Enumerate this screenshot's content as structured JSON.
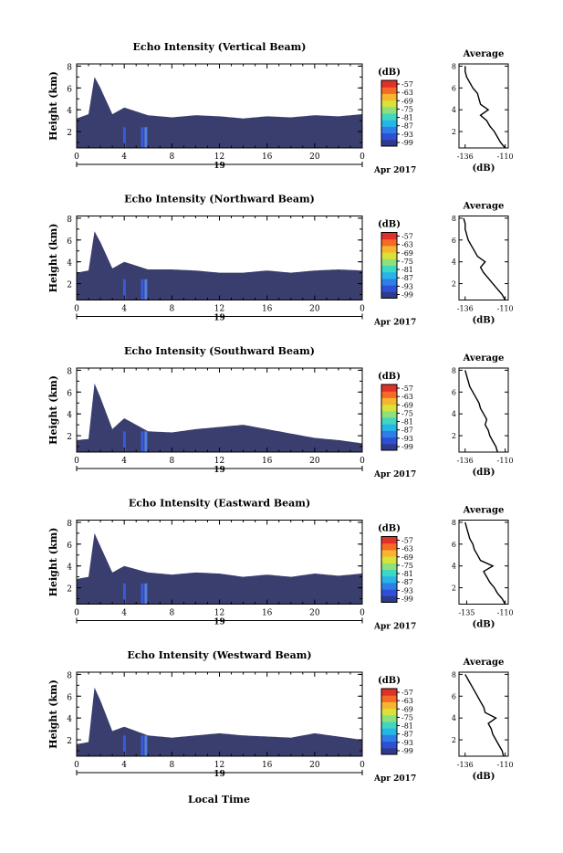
{
  "footer": {
    "xlabel": "Local Time"
  },
  "date_label": {
    "day": "19",
    "monthyear": "Apr 2017"
  },
  "colorbar": {
    "unit": "(dB)",
    "ticks": [
      "-57",
      "-63",
      "-69",
      "-75",
      "-81",
      "-87",
      "-93",
      "-99"
    ],
    "colors": [
      "#2e3a8c",
      "#2f4fd6",
      "#2d7fe8",
      "#27b4e8",
      "#3fd6c4",
      "#8ee07a",
      "#d8e23a",
      "#f7b52c",
      "#f46a26",
      "#e0302a"
    ]
  },
  "theme": {
    "fill": "#3a3e6e",
    "line": "#000000"
  },
  "chart_data": [
    {
      "type": "heatmap",
      "title": "Echo Intensity (Vertical Beam)",
      "ylabel": "Height (km)",
      "x_ticks": [
        "0",
        "4",
        "8",
        "12",
        "16",
        "20",
        "0"
      ],
      "y_ticks": [
        "2",
        "4",
        "6",
        "8"
      ],
      "xlim": [
        0,
        24
      ],
      "ylim": [
        0.5,
        8.2
      ],
      "echo_top_km": [
        [
          0,
          3.2
        ],
        [
          1,
          3.6
        ],
        [
          1.5,
          7.0
        ],
        [
          2,
          6.0
        ],
        [
          3,
          3.6
        ],
        [
          4,
          4.2
        ],
        [
          6,
          3.5
        ],
        [
          8,
          3.3
        ],
        [
          10,
          3.5
        ],
        [
          12,
          3.4
        ],
        [
          14,
          3.2
        ],
        [
          16,
          3.4
        ],
        [
          18,
          3.3
        ],
        [
          20,
          3.5
        ],
        [
          22,
          3.4
        ],
        [
          24,
          3.6
        ]
      ],
      "average": {
        "title": "Average",
        "xlabel": "(dB)",
        "x_ticks": [
          "-136",
          "-110"
        ],
        "xlim": [
          -140,
          -108
        ],
        "y_ticks": [
          "2",
          "4",
          "6",
          "8"
        ],
        "height_km": [
          0.5,
          1,
          1.5,
          2,
          2.5,
          3,
          3.5,
          4,
          4.5,
          5,
          5.5,
          6,
          6.5,
          7,
          7.5,
          8
        ],
        "db": [
          -110,
          -113,
          -115,
          -117,
          -120,
          -122,
          -126,
          -121,
          -126,
          -127,
          -128,
          -131,
          -133,
          -135,
          -136,
          -136
        ]
      }
    },
    {
      "type": "heatmap",
      "title": "Echo Intensity (Northward Beam)",
      "ylabel": "Height (km)",
      "x_ticks": [
        "0",
        "4",
        "8",
        "12",
        "16",
        "20",
        "0"
      ],
      "y_ticks": [
        "2",
        "4",
        "6",
        "8"
      ],
      "xlim": [
        0,
        24
      ],
      "ylim": [
        0.5,
        8.2
      ],
      "echo_top_km": [
        [
          0,
          3.0
        ],
        [
          1,
          3.2
        ],
        [
          1.5,
          6.8
        ],
        [
          2,
          5.8
        ],
        [
          3,
          3.4
        ],
        [
          4,
          4.0
        ],
        [
          6,
          3.3
        ],
        [
          8,
          3.3
        ],
        [
          10,
          3.2
        ],
        [
          12,
          3.0
        ],
        [
          14,
          3.0
        ],
        [
          16,
          3.2
        ],
        [
          18,
          3.0
        ],
        [
          20,
          3.2
        ],
        [
          22,
          3.3
        ],
        [
          24,
          3.2
        ]
      ],
      "average": {
        "title": "Average",
        "xlabel": "(dB)",
        "x_ticks": [
          "-136",
          "-110"
        ],
        "xlim": [
          -140,
          -108
        ],
        "y_ticks": [
          "2",
          "4",
          "6",
          "8"
        ],
        "height_km": [
          0.5,
          1,
          1.5,
          2,
          2.5,
          3,
          3.5,
          4,
          4.5,
          5,
          5.5,
          6,
          6.5,
          7,
          7.5,
          8
        ],
        "db": [
          -110,
          -112,
          -115,
          -118,
          -121,
          -124,
          -126,
          -123,
          -128,
          -130,
          -132,
          -134,
          -135,
          -136,
          -136,
          -137
        ]
      }
    },
    {
      "type": "heatmap",
      "title": "Echo Intensity (Southward Beam)",
      "ylabel": "Height (km)",
      "x_ticks": [
        "0",
        "4",
        "8",
        "12",
        "16",
        "20",
        "0"
      ],
      "y_ticks": [
        "2",
        "4",
        "6",
        "8"
      ],
      "xlim": [
        0,
        24
      ],
      "ylim": [
        0.5,
        8.2
      ],
      "echo_top_km": [
        [
          0,
          1.6
        ],
        [
          1,
          1.7
        ],
        [
          1.5,
          6.8
        ],
        [
          2,
          5.5
        ],
        [
          3,
          2.6
        ],
        [
          4,
          3.6
        ],
        [
          6,
          2.4
        ],
        [
          8,
          2.3
        ],
        [
          10,
          2.6
        ],
        [
          12,
          2.8
        ],
        [
          14,
          3.0
        ],
        [
          16,
          2.6
        ],
        [
          18,
          2.2
        ],
        [
          20,
          1.8
        ],
        [
          22,
          1.6
        ],
        [
          24,
          1.3
        ]
      ],
      "average": {
        "title": "Average",
        "xlabel": "(dB)",
        "x_ticks": [
          "-136",
          "-110"
        ],
        "xlim": [
          -140,
          -108
        ],
        "y_ticks": [
          "2",
          "4",
          "6",
          "8"
        ],
        "height_km": [
          0.5,
          1,
          1.5,
          2,
          2.5,
          3,
          3.5,
          4,
          4.5,
          5,
          5.5,
          6,
          6.5,
          7,
          7.5,
          8
        ],
        "db": [
          -115,
          -116,
          -118,
          -120,
          -121,
          -123,
          -122,
          -124,
          -126,
          -127,
          -129,
          -131,
          -133,
          -134,
          -135,
          -136
        ]
      }
    },
    {
      "type": "heatmap",
      "title": "Echo Intensity (Eastward Beam)",
      "ylabel": "Height (km)",
      "x_ticks": [
        "0",
        "4",
        "8",
        "12",
        "16",
        "20",
        "0"
      ],
      "y_ticks": [
        "2",
        "4",
        "6",
        "8"
      ],
      "xlim": [
        0,
        24
      ],
      "ylim": [
        0.5,
        8.2
      ],
      "echo_top_km": [
        [
          0,
          2.8
        ],
        [
          1,
          3.0
        ],
        [
          1.5,
          7.0
        ],
        [
          2,
          5.8
        ],
        [
          3,
          3.4
        ],
        [
          4,
          4.0
        ],
        [
          6,
          3.4
        ],
        [
          8,
          3.2
        ],
        [
          10,
          3.4
        ],
        [
          12,
          3.3
        ],
        [
          14,
          3.0
        ],
        [
          16,
          3.2
        ],
        [
          18,
          3.0
        ],
        [
          20,
          3.3
        ],
        [
          22,
          3.1
        ],
        [
          24,
          3.3
        ]
      ],
      "average": {
        "title": "Average",
        "xlabel": "(dB)",
        "x_ticks": [
          "-135",
          "-110"
        ],
        "xlim": [
          -140,
          -108
        ],
        "y_ticks": [
          "2",
          "4",
          "6",
          "8"
        ],
        "height_km": [
          0.5,
          1,
          1.5,
          2,
          2.5,
          3,
          3.5,
          4,
          4.5,
          5,
          5.5,
          6,
          6.5,
          7,
          7.5,
          8
        ],
        "db": [
          -110,
          -112,
          -115,
          -117,
          -120,
          -122,
          -124,
          -118,
          -126,
          -128,
          -130,
          -131,
          -133,
          -134,
          -135,
          -136
        ]
      }
    },
    {
      "type": "heatmap",
      "title": "Echo Intensity (Westward Beam)",
      "ylabel": "Height (km)",
      "x_ticks": [
        "0",
        "4",
        "8",
        "12",
        "16",
        "20",
        "0"
      ],
      "y_ticks": [
        "2",
        "4",
        "6",
        "8"
      ],
      "xlim": [
        0,
        24
      ],
      "ylim": [
        0.5,
        8.2
      ],
      "echo_top_km": [
        [
          0,
          1.6
        ],
        [
          1,
          1.8
        ],
        [
          1.5,
          6.8
        ],
        [
          2,
          5.6
        ],
        [
          3,
          2.8
        ],
        [
          4,
          3.2
        ],
        [
          6,
          2.4
        ],
        [
          8,
          2.2
        ],
        [
          10,
          2.4
        ],
        [
          12,
          2.6
        ],
        [
          14,
          2.4
        ],
        [
          16,
          2.3
        ],
        [
          18,
          2.2
        ],
        [
          20,
          2.6
        ],
        [
          22,
          2.3
        ],
        [
          24,
          2.0
        ]
      ],
      "average": {
        "title": "Average",
        "xlabel": "(dB)",
        "x_ticks": [
          "-136",
          "-110"
        ],
        "xlim": [
          -140,
          -108
        ],
        "y_ticks": [
          "2",
          "4",
          "6",
          "8"
        ],
        "height_km": [
          0.5,
          1,
          1.5,
          2,
          2.5,
          3,
          3.5,
          4,
          4.5,
          5,
          5.5,
          6,
          6.5,
          7,
          7.5,
          8
        ],
        "db": [
          -111,
          -112,
          -114,
          -116,
          -118,
          -119,
          -121,
          -116,
          -123,
          -124,
          -126,
          -128,
          -130,
          -132,
          -134,
          -136
        ]
      }
    }
  ]
}
